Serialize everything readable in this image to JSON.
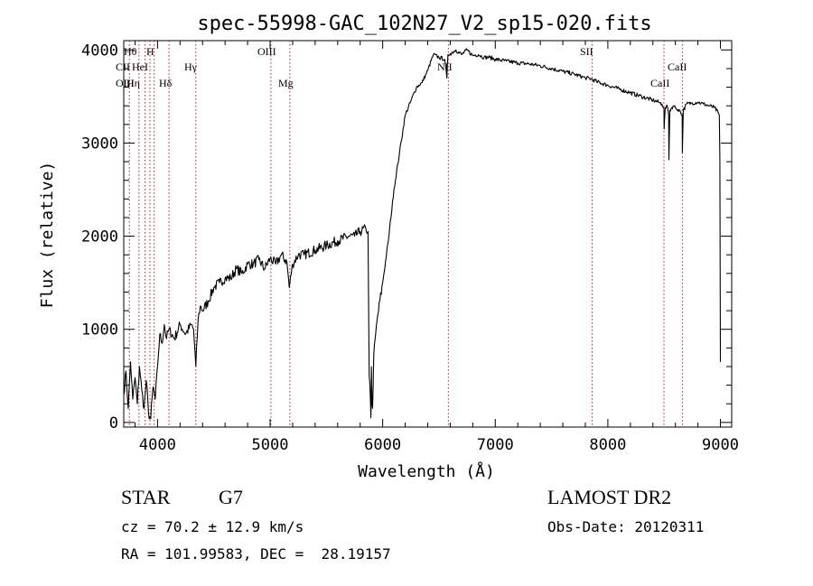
{
  "chart_data": {
    "type": "line",
    "title": "spec-55998-GAC_102N27_V2_sp15-020.fits",
    "xlabel": "Wavelength (Å)",
    "ylabel": "Flux (relative)",
    "xlim": [
      3700,
      9100
    ],
    "ylim": [
      -50,
      4100
    ],
    "x_ticks": [
      4000,
      5000,
      6000,
      7000,
      8000,
      9000
    ],
    "y_ticks": [
      0,
      1000,
      2000,
      3000,
      4000
    ],
    "grid": false,
    "series": [
      {
        "values": [
          [
            3700,
            300
          ],
          [
            3720,
            550
          ],
          [
            3740,
            150
          ],
          [
            3760,
            650
          ],
          [
            3780,
            250
          ],
          [
            3800,
            480
          ],
          [
            3820,
            200
          ],
          [
            3840,
            600
          ],
          [
            3860,
            350
          ],
          [
            3880,
            150
          ],
          [
            3900,
            450
          ],
          [
            3920,
            100
          ],
          [
            3940,
            40
          ],
          [
            3960,
            380
          ],
          [
            3980,
            250
          ],
          [
            4000,
            600
          ],
          [
            4020,
            950
          ],
          [
            4040,
            850
          ],
          [
            4060,
            1050
          ],
          [
            4080,
            900
          ],
          [
            4100,
            1000
          ],
          [
            4150,
            900
          ],
          [
            4200,
            1050
          ],
          [
            4250,
            950
          ],
          [
            4300,
            1050
          ],
          [
            4320,
            1000
          ],
          [
            4340,
            600
          ],
          [
            4360,
            1100
          ],
          [
            4380,
            1250
          ],
          [
            4400,
            1200
          ],
          [
            4450,
            1300
          ],
          [
            4500,
            1450
          ],
          [
            4550,
            1500
          ],
          [
            4600,
            1550
          ],
          [
            4650,
            1550
          ],
          [
            4700,
            1650
          ],
          [
            4750,
            1600
          ],
          [
            4800,
            1700
          ],
          [
            4850,
            1700
          ],
          [
            4900,
            1750
          ],
          [
            4950,
            1650
          ],
          [
            5000,
            1760
          ],
          [
            5050,
            1700
          ],
          [
            5100,
            1800
          ],
          [
            5150,
            1720
          ],
          [
            5170,
            1450
          ],
          [
            5200,
            1700
          ],
          [
            5250,
            1800
          ],
          [
            5300,
            1800
          ],
          [
            5400,
            1850
          ],
          [
            5500,
            1900
          ],
          [
            5600,
            1950
          ],
          [
            5700,
            2000
          ],
          [
            5750,
            2000
          ],
          [
            5800,
            2050
          ],
          [
            5850,
            2080
          ],
          [
            5870,
            2050
          ],
          [
            5880,
            500
          ],
          [
            5890,
            300
          ],
          [
            5895,
            50
          ],
          [
            5900,
            600
          ],
          [
            5905,
            200
          ],
          [
            5910,
            150
          ],
          [
            5920,
            700
          ],
          [
            5950,
            1100
          ],
          [
            6000,
            1500
          ],
          [
            6050,
            1950
          ],
          [
            6100,
            2500
          ],
          [
            6150,
            2900
          ],
          [
            6200,
            3300
          ],
          [
            6250,
            3450
          ],
          [
            6300,
            3600
          ],
          [
            6350,
            3650
          ],
          [
            6400,
            3780
          ],
          [
            6450,
            3950
          ],
          [
            6500,
            3920
          ],
          [
            6550,
            3900
          ],
          [
            6570,
            3700
          ],
          [
            6580,
            3950
          ],
          [
            6600,
            3960
          ],
          [
            6650,
            4000
          ],
          [
            6700,
            3950
          ],
          [
            6750,
            4000
          ],
          [
            6800,
            3940
          ],
          [
            6850,
            3950
          ],
          [
            6900,
            3920
          ],
          [
            6950,
            3920
          ],
          [
            7000,
            3900
          ],
          [
            7100,
            3880
          ],
          [
            7200,
            3860
          ],
          [
            7300,
            3850
          ],
          [
            7400,
            3830
          ],
          [
            7500,
            3800
          ],
          [
            7600,
            3770
          ],
          [
            7700,
            3740
          ],
          [
            7800,
            3700
          ],
          [
            7850,
            3690
          ],
          [
            7900,
            3660
          ],
          [
            8000,
            3620
          ],
          [
            8100,
            3580
          ],
          [
            8200,
            3540
          ],
          [
            8300,
            3500
          ],
          [
            8400,
            3460
          ],
          [
            8450,
            3440
          ],
          [
            8480,
            3420
          ],
          [
            8498,
            3380
          ],
          [
            8500,
            3150
          ],
          [
            8510,
            3380
          ],
          [
            8530,
            3390
          ],
          [
            8540,
            3300
          ],
          [
            8542,
            2820
          ],
          [
            8550,
            3350
          ],
          [
            8580,
            3400
          ],
          [
            8600,
            3380
          ],
          [
            8620,
            3360
          ],
          [
            8640,
            3350
          ],
          [
            8660,
            3300
          ],
          [
            8662,
            2900
          ],
          [
            8670,
            3350
          ],
          [
            8700,
            3420
          ],
          [
            8750,
            3430
          ],
          [
            8800,
            3440
          ],
          [
            8850,
            3420
          ],
          [
            8900,
            3400
          ],
          [
            8950,
            3380
          ],
          [
            8990,
            3300
          ],
          [
            8995,
            2850
          ],
          [
            9000,
            650
          ]
        ]
      }
    ],
    "lines": [
      {
        "x": 3750,
        "labels": [
          "Hθ",
          "CII",
          "OIII"
        ]
      },
      {
        "x": 3835,
        "labels": []
      },
      {
        "x": 3889,
        "labels": [
          "Hη"
        ]
      },
      {
        "x": 3933,
        "labels": [
          "HeI"
        ]
      },
      {
        "x": 3970,
        "labels": [
          "H"
        ]
      },
      {
        "x": 4102,
        "labels": [
          "Hδ"
        ]
      },
      {
        "x": 4340,
        "labels": [
          "Hγ"
        ]
      },
      {
        "x": 5007,
        "labels": [
          "OIII"
        ]
      },
      {
        "x": 5175,
        "labels": [
          "Mg"
        ]
      },
      {
        "x": 6583,
        "labels": [
          "NII"
        ]
      },
      {
        "x": 7860,
        "labels": [
          "SII"
        ]
      },
      {
        "x": 8498,
        "labels": [
          "CaII"
        ]
      },
      {
        "x": 8662,
        "labels": [
          "CaII"
        ]
      }
    ]
  },
  "footer": {
    "class_label": "STAR",
    "subclass": "G7",
    "redshift": "cz = 70.2 ± 12.9 km/s",
    "coords": "RA = 101.99583, DEC =  28.19157",
    "survey": "LAMOST DR2",
    "obs_date": "Obs-Date: 20120311"
  }
}
